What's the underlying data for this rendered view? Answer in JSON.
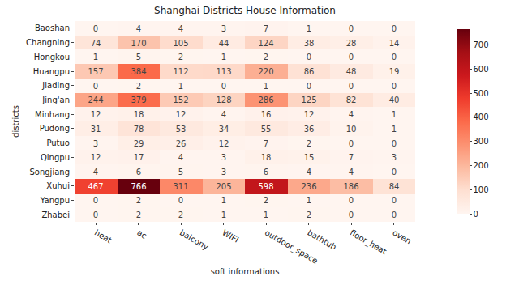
{
  "chart_data": {
    "type": "heatmap",
    "title": "Shanghai Districts House Information",
    "x_label": "soft informations",
    "y_label": "districts",
    "x": [
      "heat",
      "ac",
      "balcony",
      "WIFI",
      "outdoor_space",
      "bathtub",
      "floor_heat",
      "oven"
    ],
    "y": [
      "Baoshan",
      "Changning",
      "Hongkou",
      "Huangpu",
      "Jiading",
      "Jing'an",
      "Minhang",
      "Pudong",
      "Putuo",
      "Qingpu",
      "Songjiang",
      "Xuhui",
      "Yangpu",
      "Zhabei"
    ],
    "z": [
      [
        0,
        4,
        4,
        3,
        7,
        1,
        0,
        0
      ],
      [
        74,
        170,
        105,
        44,
        124,
        38,
        28,
        14
      ],
      [
        1,
        5,
        2,
        1,
        2,
        0,
        0,
        0
      ],
      [
        157,
        384,
        112,
        113,
        220,
        86,
        48,
        19
      ],
      [
        0,
        2,
        1,
        0,
        1,
        0,
        0,
        0
      ],
      [
        244,
        379,
        152,
        128,
        286,
        125,
        82,
        40
      ],
      [
        12,
        18,
        12,
        4,
        16,
        12,
        4,
        1
      ],
      [
        31,
        78,
        53,
        34,
        55,
        36,
        10,
        1
      ],
      [
        3,
        29,
        26,
        12,
        7,
        2,
        0,
        0
      ],
      [
        12,
        17,
        4,
        3,
        18,
        15,
        7,
        3
      ],
      [
        4,
        6,
        5,
        3,
        6,
        4,
        4,
        0
      ],
      [
        467,
        766,
        311,
        205,
        598,
        236,
        186,
        84
      ],
      [
        0,
        2,
        0,
        1,
        2,
        1,
        0,
        0
      ],
      [
        0,
        2,
        2,
        1,
        1,
        2,
        0,
        0
      ]
    ],
    "zlim": [
      0,
      766
    ],
    "zticks": [
      0,
      100,
      200,
      300,
      400,
      500,
      600,
      700
    ],
    "data_labels": true
  }
}
